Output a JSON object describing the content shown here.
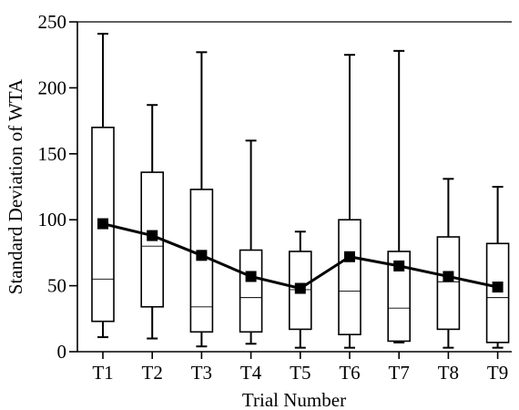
{
  "chart_data": {
    "type": "box",
    "title": "",
    "xlabel": "Trial Number",
    "ylabel": "Standard Deviation of WTA",
    "ylim": [
      0,
      250
    ],
    "yticks": [
      0,
      50,
      100,
      150,
      200,
      250
    ],
    "grid": false,
    "legend": "none",
    "categories": [
      "T1",
      "T2",
      "T3",
      "T4",
      "T5",
      "T6",
      "T7",
      "T8",
      "T9"
    ],
    "boxes": [
      {
        "min": 11,
        "q1": 23,
        "median": 55,
        "q3": 170,
        "max": 241
      },
      {
        "min": 10,
        "q1": 34,
        "median": 80,
        "q3": 136,
        "max": 187
      },
      {
        "min": 4,
        "q1": 15,
        "median": 34,
        "q3": 123,
        "max": 227
      },
      {
        "min": 6,
        "q1": 15,
        "median": 41,
        "q3": 77,
        "max": 160
      },
      {
        "min": 3,
        "q1": 17,
        "median": 47,
        "q3": 76,
        "max": 91
      },
      {
        "min": 3,
        "q1": 13,
        "median": 46,
        "q3": 100,
        "max": 225
      },
      {
        "min": 7,
        "q1": 8,
        "median": 33,
        "q3": 76,
        "max": 228
      },
      {
        "min": 3,
        "q1": 17,
        "median": 53,
        "q3": 87,
        "max": 131
      },
      {
        "min": 3,
        "q1": 7,
        "median": 41,
        "q3": 82,
        "max": 125
      }
    ],
    "mean_series": {
      "values": [
        97,
        88,
        73,
        57,
        48,
        72,
        65,
        57,
        49
      ],
      "color": "#000000",
      "marker": "square"
    }
  }
}
